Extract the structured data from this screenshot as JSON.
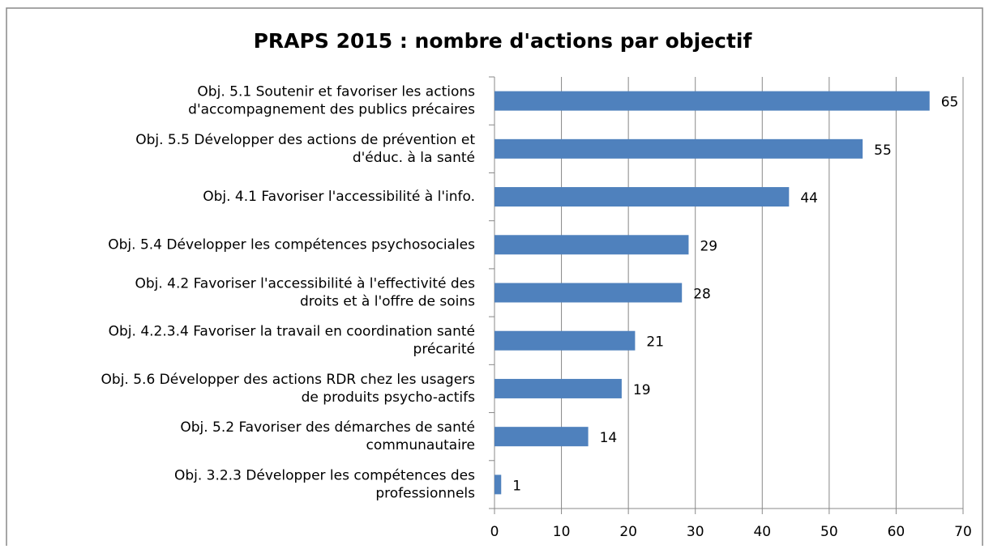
{
  "chart_data": {
    "type": "bar",
    "orientation": "horizontal",
    "title": "PRAPS 2015 : nombre d'actions par objectif",
    "categories": [
      [
        "Obj. 5.1 Soutenir et favoriser les actions",
        "d'accompagnement des publics précaires"
      ],
      [
        "Obj. 5.5 Développer des actions de prévention et",
        "d'éduc. à la santé"
      ],
      [
        "Obj. 4.1 Favoriser l'accessibilité à l'info."
      ],
      [
        "Obj. 5.4 Développer les compétences psychosociales"
      ],
      [
        "Obj. 4.2 Favoriser l'accessibilité à l'effectivité des",
        "droits et à l'offre de soins"
      ],
      [
        "Obj. 4.2.3.4 Favoriser la travail en coordination santé",
        "précarité"
      ],
      [
        "Obj. 5.6 Développer des actions RDR chez les usagers",
        "de produits psycho-actifs"
      ],
      [
        "Obj. 5.2 Favoriser des démarches de santé",
        "communautaire"
      ],
      [
        "Obj. 3.2.3 Développer les compétences des",
        "professionnels"
      ]
    ],
    "values": [
      65,
      55,
      44,
      29,
      28,
      21,
      19,
      14,
      1
    ],
    "color": "#4f81bd",
    "xlim": [
      0,
      70
    ],
    "xticks": [
      0,
      10,
      20,
      30,
      40,
      50,
      60,
      70
    ],
    "grid": true
  }
}
